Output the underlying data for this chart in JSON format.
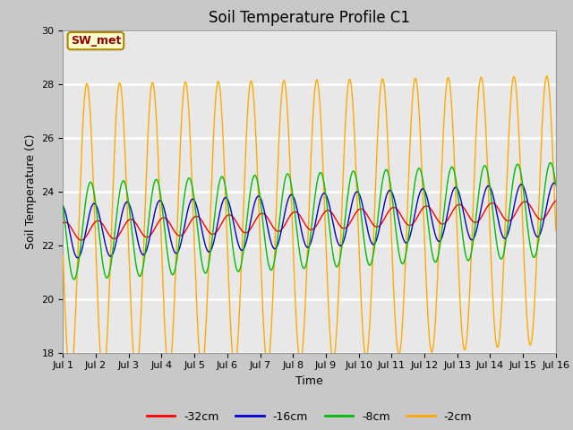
{
  "title": "Soil Temperature Profile C1",
  "xlabel": "Time",
  "ylabel": "Soil Temperature (C)",
  "ylim": [
    18,
    30
  ],
  "xlim": [
    0,
    15
  ],
  "yticks": [
    18,
    20,
    22,
    24,
    26,
    28,
    30
  ],
  "xtick_labels": [
    "Jul 1",
    "Jul 2",
    "Jul 3",
    "Jul 4",
    "Jul 5",
    "Jul 6",
    "Jul 7",
    "Jul 8",
    "Jul 9",
    "Jul 10",
    "Jul 11",
    "Jul 12",
    "Jul 13",
    "Jul 14",
    "Jul 15",
    "Jul 16"
  ],
  "xtick_positions": [
    0,
    1,
    2,
    3,
    4,
    5,
    6,
    7,
    8,
    9,
    10,
    11,
    12,
    13,
    14,
    15
  ],
  "colors": {
    "-32cm": "#ff0000",
    "-16cm": "#0000cc",
    "-8cm": "#00bb00",
    "-2cm": "#ffaa00"
  },
  "labels": [
    "-32cm",
    "-16cm",
    "-8cm",
    "-2cm"
  ],
  "annotation_text": "SW_met",
  "annotation_color": "#8b0000",
  "annotation_bg": "#ffffcc",
  "annotation_border": "#aa8800",
  "fig_bg_color": "#c8c8c8",
  "plot_bg_color": "#e8e8e8",
  "grid_color": "#ffffff",
  "title_fontsize": 12,
  "axis_label_fontsize": 9,
  "tick_fontsize": 8,
  "legend_fontsize": 9,
  "n_pts_per_day": 144,
  "n_days": 15,
  "base_temp": 22.5,
  "trend": 0.055,
  "amp_32cm": 0.35,
  "amp_16cm": 1.0,
  "amp_8cm": 1.8,
  "amp_2cm": 5.5,
  "phase_2cm": 3.3,
  "phase_8cm": 2.6,
  "phase_16cm": 1.9,
  "phase_32cm": 1.2,
  "amp_decay_2cm": 0.1,
  "amp_decay_8cm": 0.03,
  "amp_decay_16cm": 0.01,
  "amp_decay_32cm": 0.0
}
